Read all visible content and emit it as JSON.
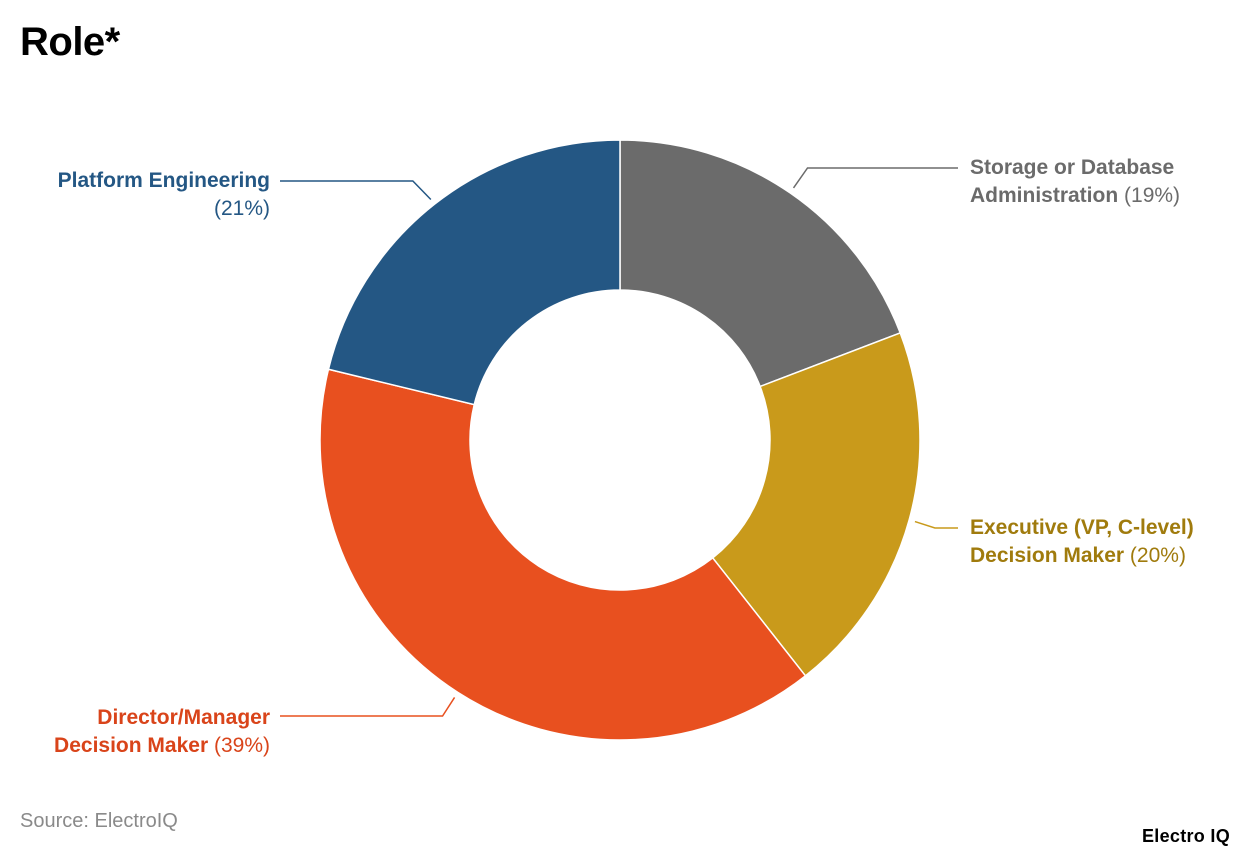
{
  "title": "Role*",
  "source": "Source: ElectroIQ",
  "brand": "Electro IQ",
  "chart_data": {
    "type": "pie",
    "style": "donut",
    "title": "Role*",
    "slices": [
      {
        "label_line1": "Storage or Database",
        "label_line2": "Administration",
        "pct_text": "(19%)",
        "value": 19,
        "color": "#6b6b6b",
        "label_color": "#6b6b6b"
      },
      {
        "label_line1": "Executive (VP, C-level)",
        "label_line2": "Decision Maker",
        "pct_text": "(20%)",
        "value": 20,
        "color": "#c99a1b",
        "label_color": "#a07b0d"
      },
      {
        "label_line1": "Director/Manager",
        "label_line2": "Decision Maker",
        "pct_text": "(39%)",
        "value": 39,
        "color": "#e8501f",
        "label_color": "#d9441a"
      },
      {
        "label_line1": "Platform Engineering",
        "label_line2": "",
        "pct_text": "(21%)",
        "value": 21,
        "color": "#245784",
        "label_color": "#245784"
      }
    ]
  }
}
